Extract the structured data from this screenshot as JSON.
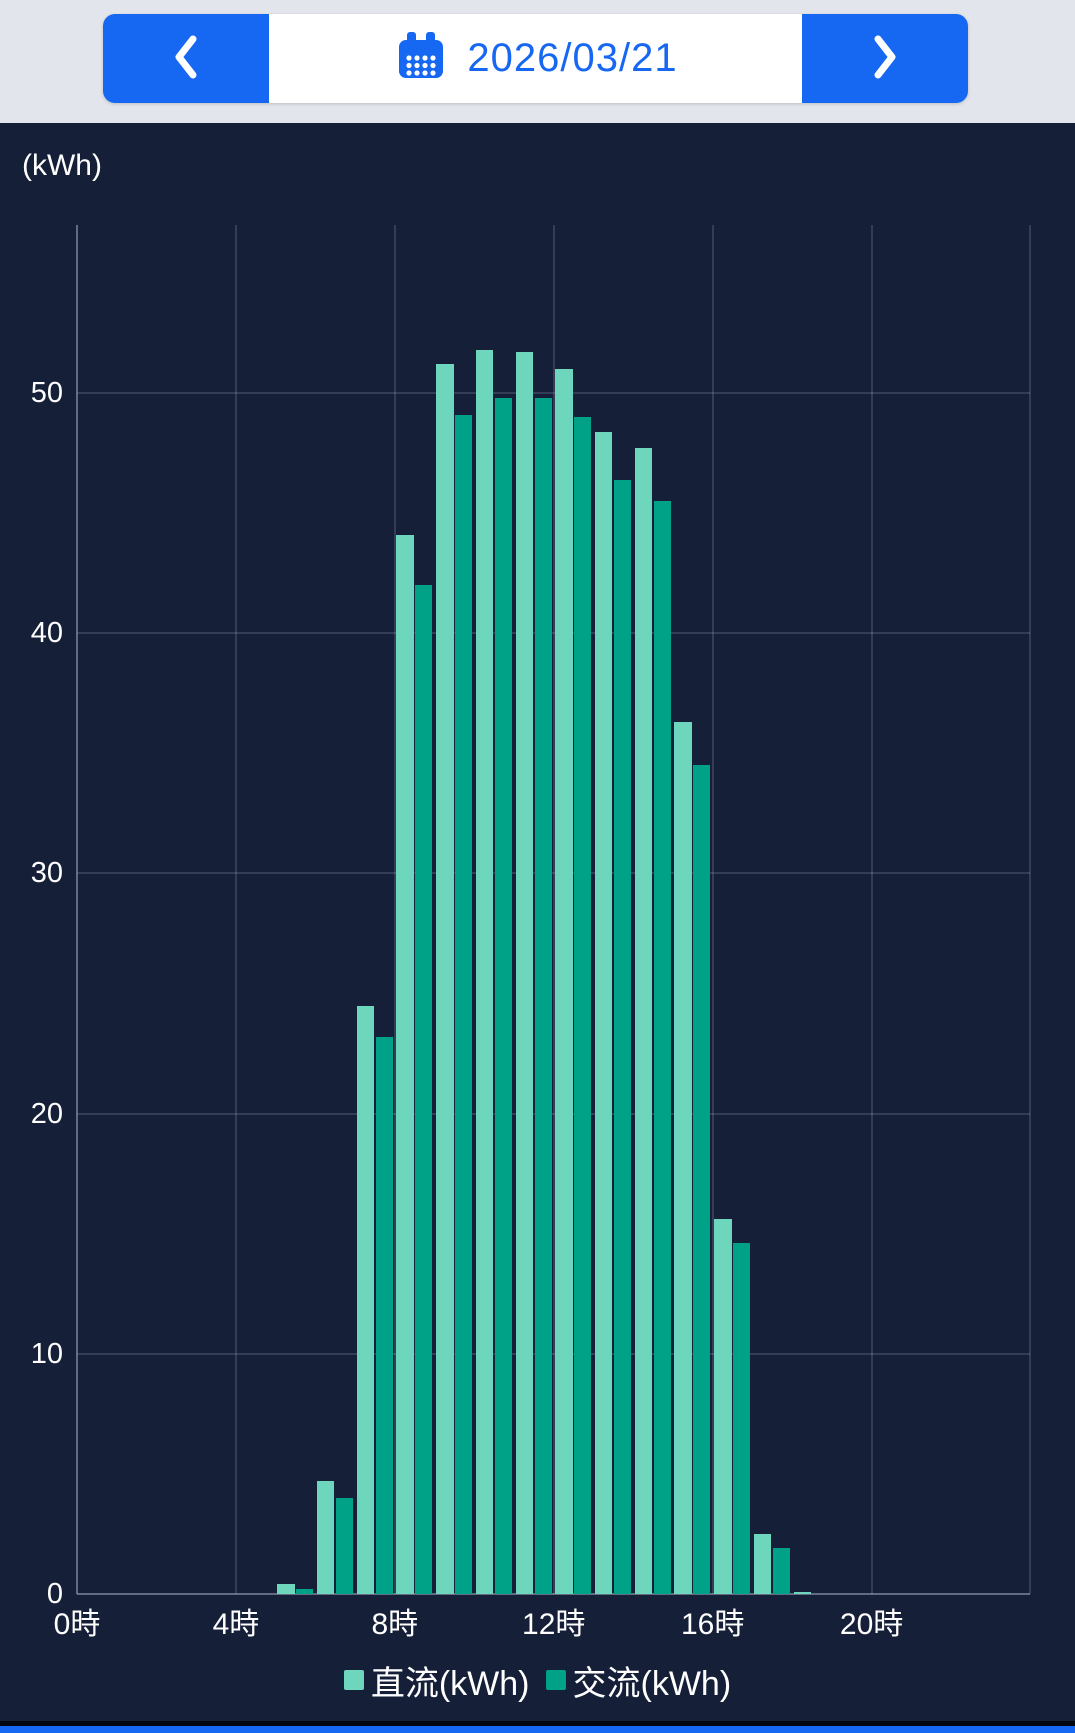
{
  "header": {
    "date_value": "2026/03/21"
  },
  "chart": {
    "unit_label": "(kWh)"
  },
  "colors": {
    "accent_blue": "#1667f2",
    "header_background": "#e3e5ec",
    "chart_background": "#161f38",
    "dc_light_teal": "#6fd6be",
    "ac_dark_teal": "#00a287",
    "text_white": "#ffffff"
  },
  "chart_data": {
    "type": "bar",
    "title": "",
    "xlabel": "",
    "ylabel": "(kWh)",
    "categories": [
      0,
      1,
      2,
      3,
      4,
      5,
      6,
      7,
      8,
      9,
      10,
      11,
      12,
      13,
      14,
      15,
      16,
      17,
      18,
      19,
      20,
      21,
      22,
      23
    ],
    "series": [
      {
        "key": "dc",
        "name": "直流(kWh)",
        "color": "#6fd6be",
        "values": [
          0,
          0,
          0,
          0,
          0,
          0.4,
          4.7,
          24.5,
          44.1,
          51.2,
          51.8,
          51.7,
          51.0,
          48.4,
          47.7,
          36.3,
          15.6,
          2.5,
          0.1,
          0,
          0,
          0,
          0,
          0
        ]
      },
      {
        "key": "ac",
        "name": "交流(kWh)",
        "color": "#00a287",
        "values": [
          0,
          0,
          0,
          0,
          0,
          0.2,
          4.0,
          23.2,
          42.0,
          49.1,
          49.8,
          49.8,
          49.0,
          46.4,
          45.5,
          34.5,
          14.6,
          1.9,
          0,
          0,
          0,
          0,
          0,
          0
        ]
      }
    ],
    "yticks": [
      0,
      10,
      20,
      30,
      40,
      50
    ],
    "ylim": [
      0,
      57
    ],
    "xticks": [
      {
        "hour": 0,
        "label": "0時"
      },
      {
        "hour": 4,
        "label": "4時"
      },
      {
        "hour": 8,
        "label": "8時"
      },
      {
        "hour": 12,
        "label": "12時"
      },
      {
        "hour": 16,
        "label": "16時"
      },
      {
        "hour": 20,
        "label": "20時"
      }
    ],
    "grid": true,
    "legend_position": "bottom"
  }
}
